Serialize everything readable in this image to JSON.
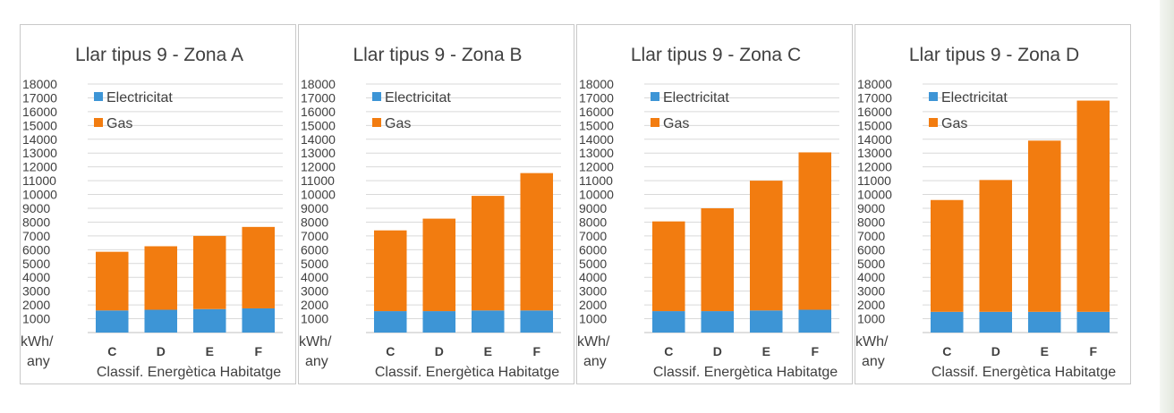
{
  "colors": {
    "electricity": "#3d95d6",
    "gas": "#f27c10",
    "grid": "#d9d9d9",
    "frame": "#c9c9c9",
    "text": "#404040"
  },
  "chart_data": [
    {
      "type": "bar",
      "stacked": true,
      "title": "Llar tipus  9 - Zona A",
      "xlabel": "Classif. Energètica Habitatge",
      "ylabel": [
        "kWh/",
        "any"
      ],
      "categories": [
        "C",
        "D",
        "E",
        "F"
      ],
      "ylim": [
        0,
        18000
      ],
      "yticks": [
        "18000",
        "17000",
        "16000",
        "15000",
        "14000",
        "13000",
        "12000",
        "11000",
        "10000",
        "9000",
        "8000",
        "7000",
        "6000",
        "5000",
        "4000",
        "3000",
        "2000",
        "1000"
      ],
      "grid": true,
      "legend_position": "top-left",
      "series": [
        {
          "name": "Electricitat",
          "color": "#3d95d6",
          "values": [
            1600,
            1650,
            1700,
            1750
          ]
        },
        {
          "name": "Gas",
          "color": "#f27c10",
          "values": [
            4250,
            4600,
            5300,
            5900
          ]
        }
      ]
    },
    {
      "type": "bar",
      "stacked": true,
      "title": "Llar tipus  9 - Zona B",
      "xlabel": "Classif. Energètica Habitatge",
      "ylabel": [
        "kWh/",
        "any"
      ],
      "categories": [
        "C",
        "D",
        "E",
        "F"
      ],
      "ylim": [
        0,
        18000
      ],
      "yticks": [
        "18000",
        "17000",
        "16000",
        "15000",
        "14000",
        "13000",
        "12000",
        "11000",
        "10000",
        "9000",
        "8000",
        "7000",
        "6000",
        "5000",
        "4000",
        "3000",
        "2000",
        "1000"
      ],
      "grid": true,
      "legend_position": "top-left",
      "series": [
        {
          "name": "Electricitat",
          "color": "#3d95d6",
          "values": [
            1550,
            1550,
            1600,
            1600
          ]
        },
        {
          "name": "Gas",
          "color": "#f27c10",
          "values": [
            5850,
            6700,
            8300,
            9950
          ]
        }
      ]
    },
    {
      "type": "bar",
      "stacked": true,
      "title": "Llar tipus  9 - Zona C",
      "xlabel": "Classif. Energètica Habitatge",
      "ylabel": [
        "kWh/",
        "any"
      ],
      "categories": [
        "C",
        "D",
        "E",
        "F"
      ],
      "ylim": [
        0,
        18000
      ],
      "yticks": [
        "18000",
        "17000",
        "16000",
        "15000",
        "14000",
        "13000",
        "12000",
        "11000",
        "10000",
        "9000",
        "8000",
        "7000",
        "6000",
        "5000",
        "4000",
        "3000",
        "2000",
        "1000"
      ],
      "grid": true,
      "legend_position": "top-left",
      "series": [
        {
          "name": "Electricitat",
          "color": "#3d95d6",
          "values": [
            1550,
            1550,
            1600,
            1650
          ]
        },
        {
          "name": "Gas",
          "color": "#f27c10",
          "values": [
            6500,
            7450,
            9400,
            11400
          ]
        }
      ]
    },
    {
      "type": "bar",
      "stacked": true,
      "title": "Llar tipus  9 - Zona D",
      "xlabel": "Classif. Energètica Habitatge",
      "ylabel": [
        "kWh/",
        "any"
      ],
      "categories": [
        "C",
        "D",
        "E",
        "F"
      ],
      "ylim": [
        0,
        18000
      ],
      "yticks": [
        "18000",
        "17000",
        "16000",
        "15000",
        "14000",
        "13000",
        "12000",
        "11000",
        "10000",
        "9000",
        "8000",
        "7000",
        "6000",
        "5000",
        "4000",
        "3000",
        "2000",
        "1000"
      ],
      "grid": true,
      "legend_position": "top-left",
      "series": [
        {
          "name": "Electricitat",
          "color": "#3d95d6",
          "values": [
            1500,
            1500,
            1500,
            1500
          ]
        },
        {
          "name": "Gas",
          "color": "#f27c10",
          "values": [
            8100,
            9550,
            12400,
            15300
          ]
        }
      ]
    }
  ]
}
